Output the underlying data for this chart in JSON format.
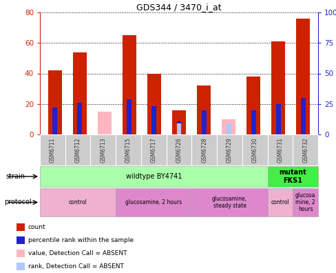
{
  "title": "GDS344 / 3470_i_at",
  "samples": [
    "GSM6711",
    "GSM6712",
    "GSM6713",
    "GSM6715",
    "GSM6717",
    "GSM6726",
    "GSM6728",
    "GSM6729",
    "GSM6730",
    "GSM6731",
    "GSM6732"
  ],
  "count_values": [
    42,
    54,
    0,
    65,
    40,
    16,
    32,
    0,
    38,
    61,
    76
  ],
  "rank_values": [
    22,
    26,
    0,
    29,
    23,
    11,
    20,
    0,
    20,
    25,
    30
  ],
  "absent_count": [
    0,
    0,
    15,
    0,
    0,
    0,
    0,
    10,
    0,
    0,
    0
  ],
  "absent_rank": [
    0,
    0,
    0,
    0,
    0,
    9,
    0,
    9,
    0,
    0,
    0
  ],
  "ylim_left": [
    0,
    80
  ],
  "ylim_right": [
    0,
    100
  ],
  "yticks_left": [
    0,
    20,
    40,
    60,
    80
  ],
  "yticks_right": [
    0,
    25,
    50,
    75,
    100
  ],
  "ytick_labels_left": [
    "0",
    "20",
    "40",
    "60",
    "80"
  ],
  "ytick_labels_right": [
    "0",
    "25",
    "50",
    "75",
    "100%"
  ],
  "strain_groups": [
    {
      "text": "wildtype BY4741",
      "start": 0,
      "end": 9,
      "color": "#aaffaa",
      "bold": false
    },
    {
      "text": "mutant\nFKS1",
      "start": 9,
      "end": 11,
      "color": "#44ee44",
      "bold": true
    }
  ],
  "protocol_groups": [
    {
      "text": "control",
      "start": 0,
      "end": 3,
      "color": "#f0b0d0"
    },
    {
      "text": "glucosamine, 2 hours",
      "start": 3,
      "end": 6,
      "color": "#dd88cc"
    },
    {
      "text": "glucosamine,\nsteady state",
      "start": 6,
      "end": 9,
      "color": "#dd88cc"
    },
    {
      "text": "control",
      "start": 9,
      "end": 10,
      "color": "#f0b0d0"
    },
    {
      "text": "glucosa\nmine, 2\nhours",
      "start": 10,
      "end": 11,
      "color": "#dd88cc"
    }
  ],
  "count_color": "#cc2200",
  "rank_color": "#2222cc",
  "absent_count_color": "#ffb6c1",
  "absent_rank_color": "#b0c8ff",
  "xtick_bg_color": "#cccccc",
  "left_tick_color": "#cc2200",
  "right_tick_color": "#2222cc",
  "legend_items": [
    {
      "color": "#cc2200",
      "label": "count"
    },
    {
      "color": "#2222cc",
      "label": "percentile rank within the sample"
    },
    {
      "color": "#ffb6c1",
      "label": "value, Detection Call = ABSENT"
    },
    {
      "color": "#b0c8ff",
      "label": "rank, Detection Call = ABSENT"
    }
  ]
}
